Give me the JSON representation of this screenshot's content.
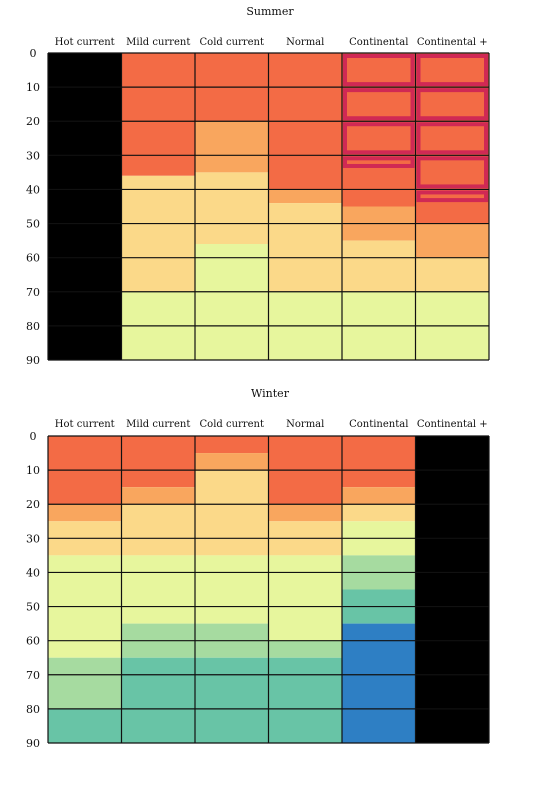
{
  "chart_data": [
    {
      "type": "heatmap",
      "title": "Summer",
      "columns": [
        "Hot current",
        "Mild current",
        "Cold current",
        "Normal",
        "Continental",
        "Continental +"
      ],
      "y_ticks": [
        0,
        10,
        20,
        30,
        40,
        50,
        60,
        70,
        80,
        90
      ],
      "ylim": [
        0,
        90
      ],
      "cell_rows": 9,
      "palette": {
        "black": "#000000",
        "red": "#F36B45",
        "orange": "#F9A65E",
        "yellow": "#FBD989",
        "lightyellow": "#E7F69D",
        "green": "#A6DBA0",
        "teal": "#68C4A6",
        "blue": "#2E7FC4",
        "highlight": "#CC2255"
      },
      "segments": [
        [
          [
            0,
            90,
            "black"
          ]
        ],
        [
          [
            0,
            36,
            "red"
          ],
          [
            36,
            90,
            "yellow"
          ],
          [
            70,
            90,
            "lightyellow"
          ]
        ],
        [
          [
            0,
            20,
            "red"
          ],
          [
            20,
            30,
            "orange"
          ],
          [
            30,
            35,
            "orange"
          ],
          [
            35,
            40,
            "yellow"
          ],
          [
            40,
            56,
            "yellow"
          ],
          [
            56,
            90,
            "lightyellow"
          ]
        ],
        [
          [
            0,
            40,
            "red"
          ],
          [
            40,
            44,
            "orange"
          ],
          [
            44,
            70,
            "yellow"
          ],
          [
            70,
            90,
            "lightyellow"
          ]
        ],
        [
          [
            0,
            40,
            "red"
          ],
          [
            40,
            45,
            "red"
          ],
          [
            45,
            50,
            "orange"
          ],
          [
            50,
            55,
            "orange"
          ],
          [
            55,
            60,
            "yellow"
          ],
          [
            60,
            70,
            "yellow"
          ],
          [
            70,
            90,
            "lightyellow"
          ]
        ],
        [
          [
            0,
            50,
            "red"
          ],
          [
            50,
            60,
            "orange"
          ],
          [
            60,
            70,
            "yellow"
          ],
          [
            70,
            90,
            "lightyellow"
          ]
        ]
      ],
      "highlights": [
        [
          4,
          0,
          10
        ],
        [
          4,
          10,
          20
        ],
        [
          4,
          20,
          30
        ],
        [
          4,
          30,
          34
        ],
        [
          5,
          0,
          10
        ],
        [
          5,
          10,
          20
        ],
        [
          5,
          20,
          30
        ],
        [
          5,
          30,
          40
        ],
        [
          5,
          40,
          44
        ]
      ]
    },
    {
      "type": "heatmap",
      "title": "Winter",
      "columns": [
        "Hot current",
        "Mild current",
        "Cold current",
        "Normal",
        "Continental",
        "Continental +"
      ],
      "y_ticks": [
        0,
        10,
        20,
        30,
        40,
        50,
        60,
        70,
        80,
        90
      ],
      "ylim": [
        0,
        90
      ],
      "cell_rows": 9,
      "palette": {
        "black": "#000000",
        "red": "#F36B45",
        "orange": "#F9A65E",
        "yellow": "#FBD989",
        "lightyellow": "#E7F69D",
        "green": "#A6DBA0",
        "teal": "#68C4A6",
        "blue": "#2E7FC4"
      },
      "segments": [
        [
          [
            0,
            20,
            "red"
          ],
          [
            20,
            25,
            "orange"
          ],
          [
            25,
            35,
            "yellow"
          ],
          [
            35,
            65,
            "lightyellow"
          ],
          [
            65,
            80,
            "green"
          ],
          [
            80,
            90,
            "teal"
          ]
        ],
        [
          [
            0,
            15,
            "red"
          ],
          [
            15,
            20,
            "orange"
          ],
          [
            20,
            35,
            "yellow"
          ],
          [
            35,
            55,
            "lightyellow"
          ],
          [
            55,
            60,
            "green"
          ],
          [
            60,
            65,
            "green"
          ],
          [
            65,
            90,
            "teal"
          ]
        ],
        [
          [
            0,
            5,
            "red"
          ],
          [
            5,
            10,
            "orange"
          ],
          [
            10,
            35,
            "yellow"
          ],
          [
            35,
            55,
            "lightyellow"
          ],
          [
            55,
            62,
            "green"
          ],
          [
            62,
            65,
            "green"
          ],
          [
            65,
            90,
            "teal"
          ]
        ],
        [
          [
            0,
            20,
            "red"
          ],
          [
            20,
            25,
            "orange"
          ],
          [
            25,
            35,
            "yellow"
          ],
          [
            35,
            60,
            "lightyellow"
          ],
          [
            60,
            65,
            "green"
          ],
          [
            65,
            90,
            "teal"
          ]
        ],
        [
          [
            0,
            15,
            "red"
          ],
          [
            15,
            20,
            "orange"
          ],
          [
            20,
            25,
            "yellow"
          ],
          [
            25,
            35,
            "lightyellow"
          ],
          [
            35,
            40,
            "green"
          ],
          [
            40,
            45,
            "green"
          ],
          [
            45,
            50,
            "teal"
          ],
          [
            50,
            55,
            "teal"
          ],
          [
            55,
            90,
            "blue"
          ]
        ],
        [
          [
            0,
            90,
            "black"
          ]
        ]
      ],
      "highlights": []
    }
  ]
}
